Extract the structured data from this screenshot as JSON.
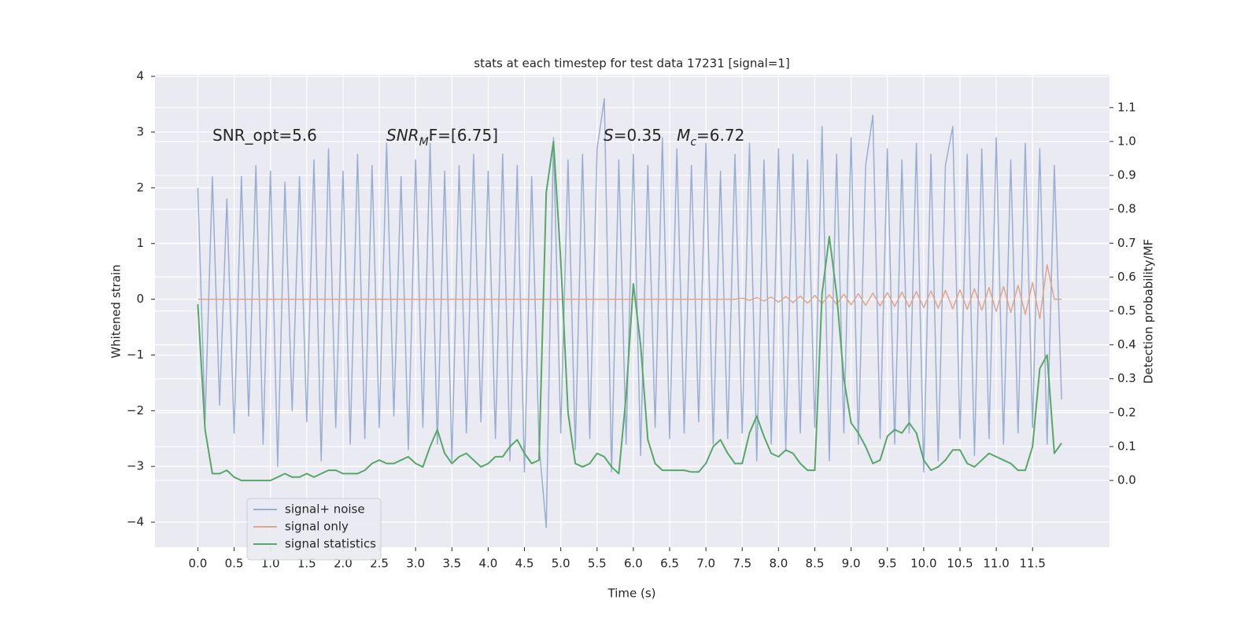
{
  "chart_data": {
    "type": "line",
    "title": "stats at each timestep for test data 17231 [signal=1]",
    "x_label": "Time (s)",
    "y_label": "Whitened strain",
    "y2_label": "Detection probability/MF",
    "grid": true,
    "legend": "lower left",
    "xlim": [
      -0.59,
      12.56
    ],
    "ylim": [
      -4.45,
      4.03
    ],
    "y2lim": [
      -0.197,
      1.197
    ],
    "xticks": [
      {
        "value": 0,
        "label": "0.0"
      },
      0.5,
      {
        "value": 1,
        "label": "1.0"
      },
      1.5,
      {
        "value": 2,
        "label": "2.0"
      },
      2.5,
      {
        "value": 3,
        "label": "3.0"
      },
      3.5,
      {
        "value": 4,
        "label": "4.0"
      },
      4.5,
      {
        "value": 5,
        "label": "5.0"
      },
      5.5,
      {
        "value": 6,
        "label": "6.0"
      },
      6.5,
      {
        "value": 7,
        "label": "7.0"
      },
      7.5,
      {
        "value": 8,
        "label": "8.0"
      },
      8.5,
      {
        "value": 9,
        "label": "9.0"
      },
      9.5,
      {
        "value": 10,
        "label": "10.0"
      },
      10.5,
      {
        "value": 11,
        "label": "11.0"
      },
      11.5
    ],
    "yticks": [
      {
        "value": -4,
        "label": "−4"
      },
      {
        "value": -3,
        "label": "−3"
      },
      {
        "value": -2,
        "label": "−2"
      },
      {
        "value": -1,
        "label": "−1"
      },
      0,
      1,
      2,
      3,
      4
    ],
    "y2ticks": [
      {
        "value": 0,
        "label": "0.0"
      },
      0.1,
      0.2,
      0.3,
      0.4,
      0.5,
      0.6,
      0.7,
      0.8,
      0.9,
      {
        "value": 1,
        "label": "1.0"
      },
      1.1
    ],
    "annotations": [
      [
        {
          "text": "SNR_opt=5.6"
        }
      ],
      [
        {
          "text": "SNR",
          "math": true
        },
        {
          "text": "M",
          "math": true,
          "sub": true
        },
        {
          "text": "F=[6.75]"
        }
      ],
      [
        {
          "text": "S",
          "math": true
        },
        {
          "text": "=0.35   "
        },
        {
          "text": "M",
          "math": true
        },
        {
          "text": "c",
          "math": true,
          "sub": true
        },
        {
          "text": "=6.72"
        }
      ]
    ],
    "x": [
      0.0,
      0.1,
      0.2,
      0.3,
      0.4,
      0.5,
      0.6,
      0.7,
      0.8,
      0.9,
      1.0,
      1.1,
      1.2,
      1.3,
      1.4,
      1.5,
      1.6,
      1.7,
      1.8,
      1.9,
      2.0,
      2.1,
      2.2,
      2.3,
      2.4,
      2.5,
      2.6,
      2.7,
      2.8,
      2.9,
      3.0,
      3.1,
      3.2,
      3.3,
      3.4,
      3.5,
      3.6,
      3.7,
      3.8,
      3.9,
      4.0,
      4.1,
      4.2,
      4.3,
      4.4,
      4.5,
      4.6,
      4.7,
      4.8,
      4.9,
      5.0,
      5.1,
      5.2,
      5.3,
      5.4,
      5.5,
      5.6,
      5.7,
      5.8,
      5.9,
      6.0,
      6.1,
      6.2,
      6.3,
      6.4,
      6.5,
      6.6,
      6.7,
      6.8,
      6.9,
      7.0,
      7.1,
      7.2,
      7.3,
      7.4,
      7.5,
      7.6,
      7.7,
      7.8,
      7.9,
      8.0,
      8.1,
      8.2,
      8.3,
      8.4,
      8.5,
      8.6,
      8.7,
      8.8,
      8.9,
      9.0,
      9.1,
      9.2,
      9.3,
      9.4,
      9.5,
      9.6,
      9.7,
      9.8,
      9.9,
      10.0,
      10.1,
      10.2,
      10.3,
      10.4,
      10.5,
      10.6,
      10.7,
      10.8,
      10.9,
      11.0,
      11.1,
      11.2,
      11.3,
      11.4,
      11.5,
      11.6,
      11.7,
      11.8,
      11.9
    ],
    "series": [
      {
        "name": "signal+ noise",
        "color": "#9aaed3",
        "values": [
          2.0,
          -2.2,
          2.2,
          -1.9,
          1.8,
          -2.4,
          2.2,
          -2.1,
          2.4,
          -2.6,
          2.3,
          -3.0,
          2.1,
          -2.0,
          2.2,
          -2.2,
          2.5,
          -2.9,
          2.7,
          -2.3,
          2.3,
          -2.6,
          2.6,
          -2.5,
          2.4,
          -2.3,
          2.8,
          -2.1,
          2.2,
          -2.7,
          2.5,
          -2.3,
          2.8,
          -2.6,
          2.3,
          -2.9,
          2.4,
          -2.4,
          2.6,
          -2.2,
          2.3,
          -2.5,
          2.6,
          -2.9,
          2.4,
          -3.1,
          2.2,
          -2.6,
          -4.1,
          2.9,
          -2.4,
          2.5,
          -2.7,
          2.6,
          -2.5,
          2.7,
          3.6,
          -3.1,
          2.5,
          -2.6,
          2.6,
          -2.8,
          2.4,
          -2.3,
          2.9,
          -2.5,
          2.7,
          -2.4,
          2.4,
          -2.2,
          2.8,
          -2.6,
          2.3,
          -2.5,
          2.6,
          -2.4,
          2.8,
          -2.9,
          2.5,
          -2.6,
          2.7,
          -2.7,
          2.6,
          -2.4,
          2.5,
          -2.3,
          3.1,
          -2.9,
          2.6,
          -2.4,
          2.9,
          -2.6,
          2.4,
          3.3,
          -2.5,
          2.7,
          -2.6,
          2.5,
          -2.4,
          2.8,
          -3.1,
          2.6,
          -2.9,
          2.4,
          3.1,
          -2.5,
          2.6,
          -2.8,
          2.7,
          -2.5,
          2.9,
          -2.6,
          2.5,
          -2.4,
          2.8,
          -2.3,
          2.7,
          -2.6,
          2.4,
          -1.8
        ]
      },
      {
        "name": "signal only",
        "color": "#e1a58a",
        "values": [
          0,
          0,
          0,
          0,
          0,
          0,
          0,
          0,
          0,
          0,
          0,
          0,
          0,
          0,
          0,
          0,
          0,
          0,
          0,
          0,
          0,
          0,
          0,
          0,
          0,
          0,
          0,
          0,
          0,
          0,
          0,
          0,
          0,
          0,
          0,
          0,
          0,
          0,
          0,
          0,
          0,
          0,
          0,
          0,
          0,
          0,
          0,
          0,
          0,
          0,
          0,
          0,
          0,
          0,
          0,
          0,
          0,
          0,
          0,
          0,
          0,
          0,
          0,
          0,
          0,
          0,
          0,
          0,
          0,
          0,
          0,
          0,
          0,
          0,
          0,
          0.02,
          -0.02,
          0.03,
          -0.03,
          0.04,
          -0.05,
          0.05,
          -0.06,
          0.06,
          -0.07,
          0.07,
          -0.08,
          0.08,
          -0.09,
          0.09,
          -0.1,
          0.1,
          -0.11,
          0.11,
          -0.12,
          0.12,
          -0.13,
          0.13,
          -0.14,
          0.14,
          -0.15,
          0.15,
          -0.16,
          0.16,
          -0.17,
          0.17,
          -0.18,
          0.19,
          -0.2,
          0.21,
          -0.22,
          0.23,
          -0.24,
          0.25,
          -0.27,
          0.3,
          -0.35,
          0.62,
          0,
          0
        ]
      },
      {
        "name": "signal statistics",
        "color": "#55a868",
        "axis": "y2",
        "values": [
          0.52,
          0.15,
          0.02,
          0.02,
          0.03,
          0.01,
          0.0,
          0.0,
          0.0,
          0.0,
          0.0,
          0.01,
          0.02,
          0.01,
          0.01,
          0.02,
          0.01,
          0.02,
          0.03,
          0.03,
          0.02,
          0.02,
          0.02,
          0.03,
          0.05,
          0.06,
          0.05,
          0.05,
          0.06,
          0.07,
          0.05,
          0.04,
          0.1,
          0.15,
          0.08,
          0.05,
          0.07,
          0.08,
          0.06,
          0.04,
          0.05,
          0.07,
          0.07,
          0.1,
          0.12,
          0.08,
          0.05,
          0.06,
          0.85,
          1.0,
          0.65,
          0.2,
          0.05,
          0.04,
          0.05,
          0.08,
          0.07,
          0.04,
          0.02,
          0.25,
          0.58,
          0.4,
          0.12,
          0.05,
          0.03,
          0.03,
          0.03,
          0.03,
          0.025,
          0.025,
          0.05,
          0.1,
          0.12,
          0.08,
          0.05,
          0.05,
          0.14,
          0.19,
          0.13,
          0.08,
          0.07,
          0.09,
          0.08,
          0.05,
          0.03,
          0.03,
          0.55,
          0.72,
          0.55,
          0.3,
          0.17,
          0.14,
          0.1,
          0.05,
          0.06,
          0.13,
          0.15,
          0.14,
          0.17,
          0.14,
          0.06,
          0.03,
          0.04,
          0.06,
          0.09,
          0.09,
          0.05,
          0.04,
          0.06,
          0.08,
          0.07,
          0.06,
          0.05,
          0.03,
          0.03,
          0.1,
          0.33,
          0.37,
          0.08,
          0.11
        ]
      }
    ]
  }
}
